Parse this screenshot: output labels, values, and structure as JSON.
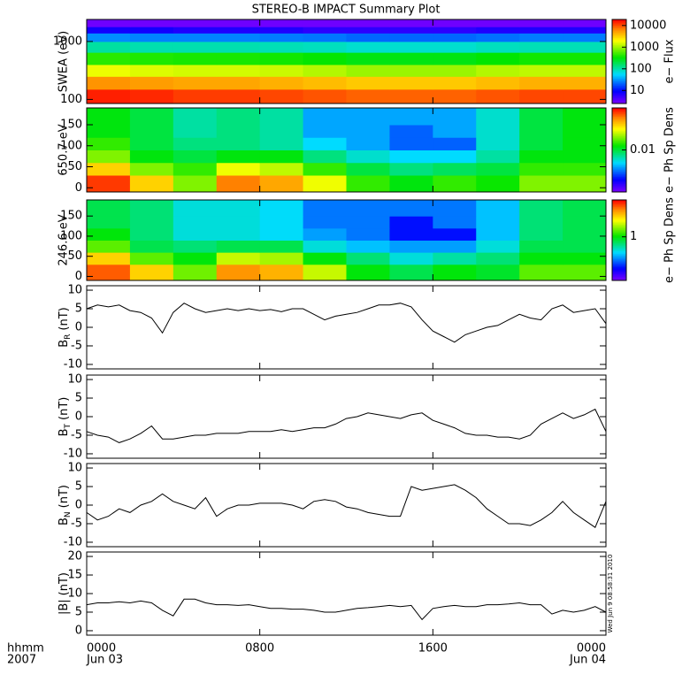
{
  "chart_data": [
    {
      "type": "heatmap",
      "title": "STEREO-B IMPACT Summary Plot",
      "ylabel": "SWEA (eV)",
      "ylog": true,
      "ylim": [
        85,
        2400
      ],
      "yticks": [
        100,
        1000
      ],
      "xlim": [
        0,
        24
      ],
      "x_edges": [
        0,
        2,
        4,
        6,
        8,
        10,
        12,
        14,
        16,
        18,
        20,
        22,
        24
      ],
      "y_edges": [
        85,
        150,
        250,
        400,
        650,
        1000,
        1400,
        1800,
        2400
      ],
      "z": [
        [
          15000,
          14000,
          12000,
          12000,
          11000,
          10000,
          9000,
          9000,
          9000,
          10000,
          11000,
          11000
        ],
        [
          6000,
          5500,
          5000,
          5000,
          4500,
          4000,
          3500,
          3500,
          3500,
          4000,
          4500,
          4500
        ],
        [
          1800,
          1600,
          1500,
          1500,
          1400,
          1200,
          1000,
          1000,
          1000,
          1200,
          1300,
          1300
        ],
        [
          450,
          420,
          400,
          400,
          380,
          350,
          300,
          300,
          300,
          340,
          380,
          380
        ],
        [
          110,
          100,
          100,
          100,
          95,
          90,
          80,
          80,
          80,
          90,
          95,
          95
        ],
        [
          30,
          28,
          28,
          28,
          26,
          25,
          22,
          22,
          22,
          24,
          26,
          26
        ],
        [
          8,
          8,
          7,
          7,
          7,
          6,
          6,
          6,
          6,
          7,
          7,
          7
        ],
        [
          3,
          3,
          3,
          3,
          3,
          3,
          3,
          3,
          3,
          3,
          3,
          3
        ]
      ],
      "colorbar": {
        "label": "e− Flux",
        "log": true,
        "clim": [
          2.5,
          19000
        ],
        "ticks": [
          10,
          100,
          1000,
          10000
        ]
      }
    },
    {
      "type": "heatmap",
      "ylabel": "650.7 eV",
      "ylog": false,
      "ylim": [
        -10,
        190
      ],
      "yticks": [
        0,
        50,
        100,
        150
      ],
      "xlim": [
        0,
        24
      ],
      "x_edges": [
        0,
        2,
        4,
        6,
        8,
        10,
        12,
        14,
        16,
        18,
        20,
        22,
        24
      ],
      "y_edges": [
        -10,
        30,
        60,
        90,
        120,
        150,
        190
      ],
      "z": [
        [
          0.08,
          0.04,
          0.02,
          0.06,
          0.05,
          0.03,
          0.015,
          0.012,
          0.015,
          0.013,
          0.02,
          0.02
        ],
        [
          0.04,
          0.02,
          0.015,
          0.03,
          0.025,
          0.015,
          0.01,
          0.008,
          0.009,
          0.01,
          0.015,
          0.015
        ],
        [
          0.02,
          0.012,
          0.01,
          0.012,
          0.012,
          0.008,
          0.006,
          0.005,
          0.005,
          0.007,
          0.012,
          0.012
        ],
        [
          0.015,
          0.01,
          0.008,
          0.008,
          0.007,
          0.005,
          0.004,
          0.003,
          0.003,
          0.006,
          0.01,
          0.012
        ],
        [
          0.012,
          0.01,
          0.007,
          0.008,
          0.007,
          0.004,
          0.004,
          0.003,
          0.004,
          0.006,
          0.01,
          0.012
        ],
        [
          0.012,
          0.01,
          0.007,
          0.008,
          0.007,
          0.004,
          0.004,
          0.004,
          0.004,
          0.006,
          0.01,
          0.012
        ]
      ],
      "colorbar": {
        "label": "e− Ph Sp Dens",
        "log": true,
        "clim": [
          0.001,
          0.1
        ],
        "ticks": [
          0.01
        ]
      }
    },
    {
      "type": "heatmap",
      "ylabel": "246.6 eV",
      "ylog": false,
      "ylim": [
        -10,
        190
      ],
      "yticks": [
        0,
        50,
        100,
        150
      ],
      "xlim": [
        0,
        24
      ],
      "x_edges": [
        0,
        2,
        4,
        6,
        8,
        10,
        12,
        14,
        16,
        18,
        20,
        22,
        24
      ],
      "y_edges": [
        -10,
        30,
        60,
        90,
        120,
        150,
        190
      ],
      "z": [
        [
          5,
          3,
          1.5,
          4,
          3.5,
          2,
          1,
          0.8,
          1,
          0.9,
          1.4,
          1.4
        ],
        [
          3,
          1.4,
          1,
          2,
          1.8,
          1,
          0.7,
          0.5,
          0.6,
          0.7,
          1,
          1
        ],
        [
          1.4,
          0.8,
          0.7,
          0.8,
          0.8,
          0.5,
          0.4,
          0.35,
          0.35,
          0.5,
          0.8,
          0.8
        ],
        [
          1,
          0.7,
          0.5,
          0.5,
          0.45,
          0.35,
          0.3,
          0.2,
          0.2,
          0.4,
          0.7,
          0.8
        ],
        [
          0.8,
          0.7,
          0.5,
          0.5,
          0.45,
          0.3,
          0.3,
          0.2,
          0.3,
          0.4,
          0.7,
          0.8
        ],
        [
          0.8,
          0.7,
          0.5,
          0.5,
          0.45,
          0.3,
          0.3,
          0.3,
          0.3,
          0.4,
          0.7,
          0.8
        ]
      ],
      "colorbar": {
        "label": "e− Ph Sp Dens",
        "log": true,
        "clim": [
          0.1,
          7
        ],
        "ticks": [
          1
        ]
      }
    },
    {
      "type": "line",
      "ylabel": [
        "B",
        "R",
        "(nT)"
      ],
      "ylim": [
        -11.2,
        11.2
      ],
      "yticks": [
        -10,
        -5,
        0,
        5,
        10
      ],
      "xlim": [
        0,
        24
      ],
      "color": "#000000",
      "x": [
        0,
        0.5,
        1,
        1.5,
        2,
        2.5,
        3,
        3.5,
        4,
        4.5,
        5,
        5.5,
        6,
        6.5,
        7,
        7.5,
        8,
        8.5,
        9,
        9.5,
        10,
        10.5,
        11,
        11.5,
        12,
        12.5,
        13,
        13.5,
        14,
        14.5,
        15,
        15.5,
        16,
        16.5,
        17,
        17.5,
        18,
        18.5,
        19,
        19.5,
        20,
        20.5,
        21,
        21.5,
        22,
        22.5,
        23,
        23.5,
        24
      ],
      "values": [
        5,
        6,
        5.5,
        6,
        4.5,
        4,
        2.5,
        -1.5,
        4,
        6.5,
        5,
        4,
        4.5,
        5,
        4.5,
        5,
        4.5,
        4.8,
        4.2,
        5,
        5,
        3.5,
        2,
        3,
        3.5,
        4,
        5,
        6,
        6,
        6.5,
        5.5,
        2,
        -1,
        -2.5,
        -4,
        -2,
        -1,
        0,
        0.5,
        2,
        3.5,
        2.5,
        2,
        5,
        6,
        4,
        4.5,
        5,
        1
      ]
    },
    {
      "type": "line",
      "ylabel": [
        "B",
        "T",
        "(nT)"
      ],
      "ylim": [
        -11.2,
        11.2
      ],
      "yticks": [
        -10,
        -5,
        0,
        5,
        10
      ],
      "xlim": [
        0,
        24
      ],
      "color": "#000000",
      "x": [
        0,
        0.5,
        1,
        1.5,
        2,
        2.5,
        3,
        3.5,
        4,
        4.5,
        5,
        5.5,
        6,
        6.5,
        7,
        7.5,
        8,
        8.5,
        9,
        9.5,
        10,
        10.5,
        11,
        11.5,
        12,
        12.5,
        13,
        13.5,
        14,
        14.5,
        15,
        15.5,
        16,
        16.5,
        17,
        17.5,
        18,
        18.5,
        19,
        19.5,
        20,
        20.5,
        21,
        21.5,
        22,
        22.5,
        23,
        23.5,
        24
      ],
      "values": [
        -4,
        -5,
        -5.5,
        -7,
        -6,
        -4.5,
        -2.5,
        -6,
        -6,
        -5.5,
        -5,
        -5,
        -4.5,
        -4.5,
        -4.5,
        -4,
        -4,
        -4,
        -3.5,
        -4,
        -3.5,
        -3,
        -3,
        -2,
        -0.5,
        0,
        1,
        0.5,
        0,
        -0.5,
        0.5,
        1,
        -1,
        -2,
        -3,
        -4.5,
        -5,
        -5,
        -5.5,
        -5.5,
        -6,
        -5,
        -2,
        -0.5,
        1,
        -0.5,
        0.5,
        2,
        -4
      ]
    },
    {
      "type": "line",
      "ylabel": [
        "B",
        "N",
        "(nT)"
      ],
      "ylim": [
        -11.2,
        11.2
      ],
      "yticks": [
        -10,
        -5,
        0,
        5,
        10
      ],
      "xlim": [
        0,
        24
      ],
      "color": "#000000",
      "x": [
        0,
        0.5,
        1,
        1.5,
        2,
        2.5,
        3,
        3.5,
        4,
        4.5,
        5,
        5.5,
        6,
        6.5,
        7,
        7.5,
        8,
        8.5,
        9,
        9.5,
        10,
        10.5,
        11,
        11.5,
        12,
        12.5,
        13,
        13.5,
        14,
        14.5,
        15,
        15.5,
        16,
        16.5,
        17,
        17.5,
        18,
        18.5,
        19,
        19.5,
        20,
        20.5,
        21,
        21.5,
        22,
        22.5,
        23,
        23.5,
        24
      ],
      "values": [
        -2,
        -4,
        -3,
        -1,
        -2,
        0,
        1,
        3,
        1,
        0,
        -1,
        2,
        -3,
        -1,
        0,
        0,
        0.5,
        0.5,
        0.5,
        0,
        -1,
        1,
        1.5,
        1,
        -0.5,
        -1,
        -2,
        -2.5,
        -3,
        -3,
        5,
        4,
        4.5,
        5,
        5.5,
        4,
        2,
        -1,
        -3,
        -5,
        -5,
        -5.5,
        -4,
        -2,
        1,
        -2,
        -4,
        -6,
        1
      ]
    },
    {
      "type": "line",
      "ylabel": [
        "|B|",
        "",
        "(nT)"
      ],
      "ylim": [
        -1.2,
        21.2
      ],
      "yticks": [
        0,
        5,
        10,
        15,
        20
      ],
      "xlim": [
        0,
        24
      ],
      "color": "#000000",
      "x": [
        0,
        0.5,
        1,
        1.5,
        2,
        2.5,
        3,
        3.5,
        4,
        4.5,
        5,
        5.5,
        6,
        6.5,
        7,
        7.5,
        8,
        8.5,
        9,
        9.5,
        10,
        10.5,
        11,
        11.5,
        12,
        12.5,
        13,
        13.5,
        14,
        14.5,
        15,
        15.5,
        16,
        16.5,
        17,
        17.5,
        18,
        18.5,
        19,
        19.5,
        20,
        20.5,
        21,
        21.5,
        22,
        22.5,
        23,
        23.5,
        24
      ],
      "values": [
        7,
        7.5,
        7.5,
        7.8,
        7.5,
        8,
        7.5,
        5.5,
        4,
        8.5,
        8.5,
        7.5,
        7,
        7,
        6.8,
        7,
        6.5,
        6,
        6,
        5.8,
        5.8,
        5.5,
        5,
        5,
        5.5,
        6,
        6.2,
        6.5,
        6.8,
        6.5,
        6.8,
        3,
        6,
        6.5,
        6.8,
        6.5,
        6.5,
        7,
        7,
        7.2,
        7.5,
        7,
        7,
        4.5,
        5.5,
        5,
        5.5,
        6.5,
        5
      ],
      "xticks": [
        {
          "value": 0,
          "label": "0000"
        },
        {
          "value": 8,
          "label": "0800"
        },
        {
          "value": 16,
          "label": "1600"
        },
        {
          "value": 24,
          "label": "0000"
        }
      ],
      "xtick_dates": [
        "Jun 03",
        null,
        null,
        "Jun 04"
      ],
      "axis_caption": [
        "hhmm",
        "2007"
      ],
      "timestamp": "Wed Jun  9 08:58:31 2010"
    }
  ]
}
